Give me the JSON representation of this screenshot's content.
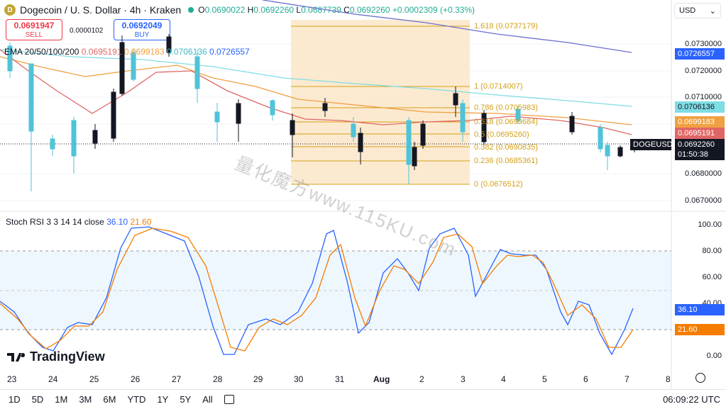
{
  "header": {
    "coin_letter": "D",
    "title": "Dogecoin / U. S. Dollar · 4h · Kraken",
    "ohlc": {
      "o_label": "O",
      "o": "0.0690022",
      "h_label": "H",
      "h": "0.0692260",
      "l_label": "L",
      "l": "0.0687739",
      "c_label": "C",
      "c": "0.0692260",
      "change": "+0.0002309 (+0.33%)"
    }
  },
  "trade": {
    "sell_price": "0.0691947",
    "sell_label": "SELL",
    "spread": "0.0000102",
    "buy_price": "0.0692049",
    "buy_label": "BUY"
  },
  "ema": {
    "label": "EMA 20/50/100/200",
    "v1": "0.0695191",
    "v2": "0.0699183",
    "v3": "0.0706136",
    "v4": "0.0726557",
    "colors": {
      "ema20": "#e06666",
      "ema50": "#f0a040",
      "ema100": "#7fdde4",
      "ema200": "#6a6fd0"
    }
  },
  "currency": {
    "value": "USD",
    "arrow": "⌄"
  },
  "price_axis": [
    "0.0730000",
    "0.0720000",
    "0.0710000",
    "0.0690000",
    "0.0680000",
    "0.0670000"
  ],
  "tags": {
    "ema200": "0.0726557",
    "ema100": "0.0706136",
    "ema50": "0.0699183",
    "ema20": "0.0695191",
    "symbol": "DOGEUSD",
    "price": "0.0692260",
    "countdown": "01:50:38"
  },
  "fib": [
    {
      "level": "1.618 (0.0737179)"
    },
    {
      "level": "1 (0.0714007)"
    },
    {
      "level": "0.786 (0.0705983)"
    },
    {
      "level": "0.618 (0.0699684)"
    },
    {
      "level": "0.5 (0.0695260)"
    },
    {
      "level": "0.382 (0.0690835)"
    },
    {
      "level": "0.236 (0.0685361)"
    },
    {
      "level": "0 (0.0676512)"
    }
  ],
  "stoch": {
    "label": "Stoch RSI 3 3 14 14 close",
    "k": "36.10",
    "d": "21.60",
    "axis": [
      "100.00",
      "80.00",
      "60.00",
      "40.00",
      "0.00"
    ],
    "k_tag": "36.10",
    "d_tag": "21.60"
  },
  "time_axis": [
    "23",
    "24",
    "25",
    "26",
    "27",
    "28",
    "29",
    "30",
    "31",
    "Aug",
    "2",
    "3",
    "4",
    "5",
    "6",
    "7",
    "8"
  ],
  "bottom": {
    "ranges": [
      "1D",
      "5D",
      "1M",
      "3M",
      "6M",
      "YTD",
      "1Y",
      "5Y",
      "All"
    ],
    "clock": "06:09:22 UTC"
  },
  "brand": {
    "name": "TradingView"
  },
  "watermark": "量化魔方www.115KU.com"
}
